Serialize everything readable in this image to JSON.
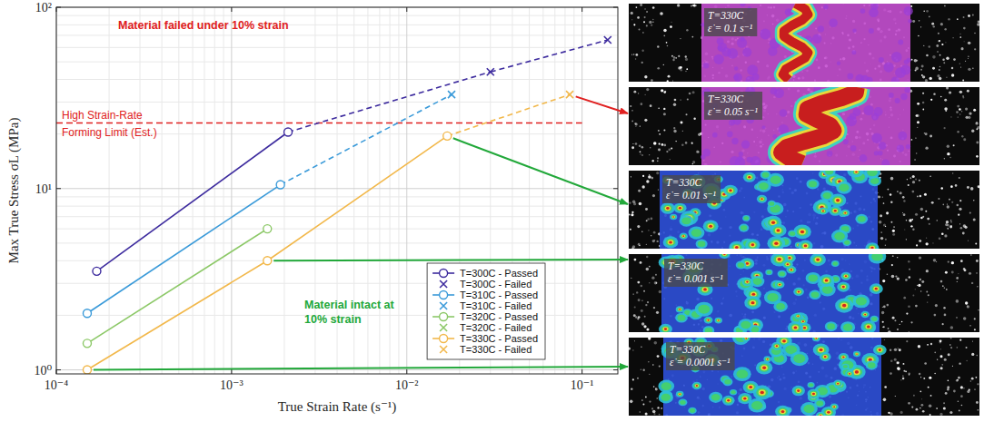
{
  "chart_data": {
    "type": "line",
    "x_label": "True Strain Rate (s⁻¹)",
    "y_label": "Max True Stress σL (MPa)",
    "log": true,
    "grid": true,
    "legend": "lower right",
    "xlim": [
      0.0001,
      0.16
    ],
    "ylim": [
      0.95,
      100
    ],
    "xticks": [
      {
        "value": 0.0001,
        "label": "10⁻⁴"
      },
      {
        "value": 0.001,
        "label": "10⁻³"
      },
      {
        "value": 0.01,
        "label": "10⁻²"
      },
      {
        "value": 0.1,
        "label": "10⁻¹"
      }
    ],
    "yticks": [
      {
        "value": 1,
        "label": "10⁰"
      },
      {
        "value": 10,
        "label": "10¹"
      },
      {
        "value": 100,
        "label": "10²"
      }
    ],
    "series": [
      {
        "name": "T=300C - Passed",
        "color": "#3d2b9e",
        "marker": "circle",
        "line_style": "solid",
        "x": [
          0.00017,
          0.0021
        ],
        "values": [
          3.5,
          20.5
        ]
      },
      {
        "name": "T=300C - Failed",
        "color": "#3d2b9e",
        "marker": "x",
        "line_style": "dashed",
        "x": [
          0.03,
          0.14
        ],
        "values": [
          44,
          66
        ]
      },
      {
        "name": "T=310C - Passed",
        "color": "#3a9ad9",
        "marker": "circle",
        "line_style": "solid",
        "x": [
          0.00015,
          0.0019
        ],
        "values": [
          2.05,
          10.5
        ]
      },
      {
        "name": "T=310C - Failed",
        "color": "#3a9ad9",
        "marker": "x",
        "line_style": "dashed",
        "x": [
          0.018
        ],
        "values": [
          33
        ]
      },
      {
        "name": "T=320C - Passed",
        "color": "#8cc867",
        "marker": "circle",
        "line_style": "solid",
        "x": [
          0.00015,
          0.0016
        ],
        "values": [
          1.4,
          6
        ]
      },
      {
        "name": "T=320C - Failed",
        "color": "#8cc867",
        "marker": "x",
        "line_style": "dashed",
        "x": [],
        "values": []
      },
      {
        "name": "T=330C - Passed",
        "color": "#f2b84b",
        "marker": "circle",
        "line_style": "solid",
        "x": [
          0.00015,
          0.0016,
          0.017
        ],
        "values": [
          1.0,
          4.0,
          19.5
        ]
      },
      {
        "name": "T=330C - Failed",
        "color": "#f2b84b",
        "marker": "x",
        "line_style": "dashed",
        "x": [
          0.085
        ],
        "values": [
          33
        ]
      }
    ],
    "reference_line": {
      "label": "High Strain-Rate Forming Limit (Est.)",
      "y": 23,
      "x": [
        0.0001,
        0.1
      ],
      "color": "#e02020",
      "line_style": "dashed"
    },
    "annotations": [
      {
        "text": "Material failed under 10% strain",
        "color": "#e02020"
      },
      {
        "text": "Material intact at 10% strain",
        "color": "#22a83a"
      }
    ]
  },
  "strain_maps": [
    {
      "temperature": "T=330C",
      "strain_rate": "ε̇ = 0.1 s⁻¹"
    },
    {
      "temperature": "T=330C",
      "strain_rate": "ε̇ = 0.05 s⁻¹"
    },
    {
      "temperature": "T=330C",
      "strain_rate": "ε̇ = 0.01 s⁻¹"
    },
    {
      "temperature": "T=330C",
      "strain_rate": "ε̇ = 0.001 s⁻¹"
    },
    {
      "temperature": "T=330C",
      "strain_rate": "ε̇ = 0.0001 s⁻¹"
    }
  ]
}
